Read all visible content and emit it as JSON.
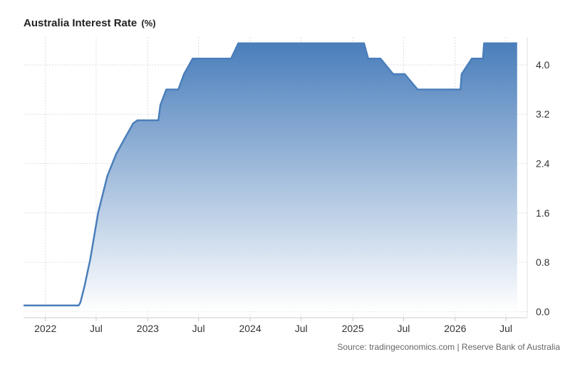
{
  "header": {
    "title": "Australia Interest Rate",
    "unit": "(%)"
  },
  "source": "Source: tradingeconomics.com | Reserve Bank of Australia",
  "colors": {
    "line": "#4a7ebb",
    "fill_top": "#4a7ebb",
    "fill_bottom": "#ffffff",
    "grid": "#dddddd"
  },
  "chart_data": {
    "type": "area",
    "title": "Australia Interest Rate",
    "xlabel": "",
    "ylabel": "",
    "ylim": [
      -0.1,
      4.45
    ],
    "xlim": [
      "2021-10-15",
      "2026-09-15"
    ],
    "x_ticks": [
      {
        "label": "2022",
        "date": "2022-01-01"
      },
      {
        "label": "Jul",
        "date": "2022-07-01"
      },
      {
        "label": "2023",
        "date": "2023-01-01"
      },
      {
        "label": "Jul",
        "date": "2023-07-01"
      },
      {
        "label": "2024",
        "date": "2024-01-01"
      },
      {
        "label": "Jul",
        "date": "2024-07-01"
      },
      {
        "label": "2025",
        "date": "2025-01-01"
      },
      {
        "label": "Jul",
        "date": "2025-07-01"
      },
      {
        "label": "2026",
        "date": "2026-01-01"
      },
      {
        "label": "Jul",
        "date": "2026-07-01"
      }
    ],
    "y_ticks": [
      {
        "label": "0.0",
        "value": 0.0
      },
      {
        "label": "0.8",
        "value": 0.8
      },
      {
        "label": "1.6",
        "value": 1.6
      },
      {
        "label": "2.4",
        "value": 2.4
      },
      {
        "label": "3.2",
        "value": 3.2
      },
      {
        "label": "4.0",
        "value": 4.0
      }
    ],
    "grid": true,
    "series": [
      {
        "name": "",
        "points": [
          [
            "2021-10-15",
            0.1
          ],
          [
            "2022-04-30",
            0.1
          ],
          [
            "2022-05-06",
            0.15
          ],
          [
            "2022-05-20",
            0.4
          ],
          [
            "2022-06-10",
            0.85
          ],
          [
            "2022-07-08",
            1.6
          ],
          [
            "2022-08-10",
            2.2
          ],
          [
            "2022-09-10",
            2.55
          ],
          [
            "2022-10-10",
            2.8
          ],
          [
            "2022-11-10",
            3.05
          ],
          [
            "2022-11-25",
            3.1
          ],
          [
            "2023-02-08",
            3.1
          ],
          [
            "2023-02-15",
            3.35
          ],
          [
            "2023-03-08",
            3.6
          ],
          [
            "2023-04-20",
            3.6
          ],
          [
            "2023-05-10",
            3.85
          ],
          [
            "2023-06-10",
            4.1
          ],
          [
            "2023-10-25",
            4.1
          ],
          [
            "2023-11-20",
            4.35
          ],
          [
            "2025-02-10",
            4.35
          ],
          [
            "2025-02-25",
            4.1
          ],
          [
            "2025-04-10",
            4.1
          ],
          [
            "2025-05-25",
            3.85
          ],
          [
            "2025-07-05",
            3.85
          ],
          [
            "2025-08-20",
            3.6
          ],
          [
            "2026-01-20",
            3.6
          ],
          [
            "2026-01-24",
            3.85
          ],
          [
            "2026-03-01",
            4.1
          ],
          [
            "2026-04-10",
            4.1
          ],
          [
            "2026-04-14",
            4.35
          ],
          [
            "2026-08-10",
            4.35
          ]
        ]
      }
    ]
  }
}
